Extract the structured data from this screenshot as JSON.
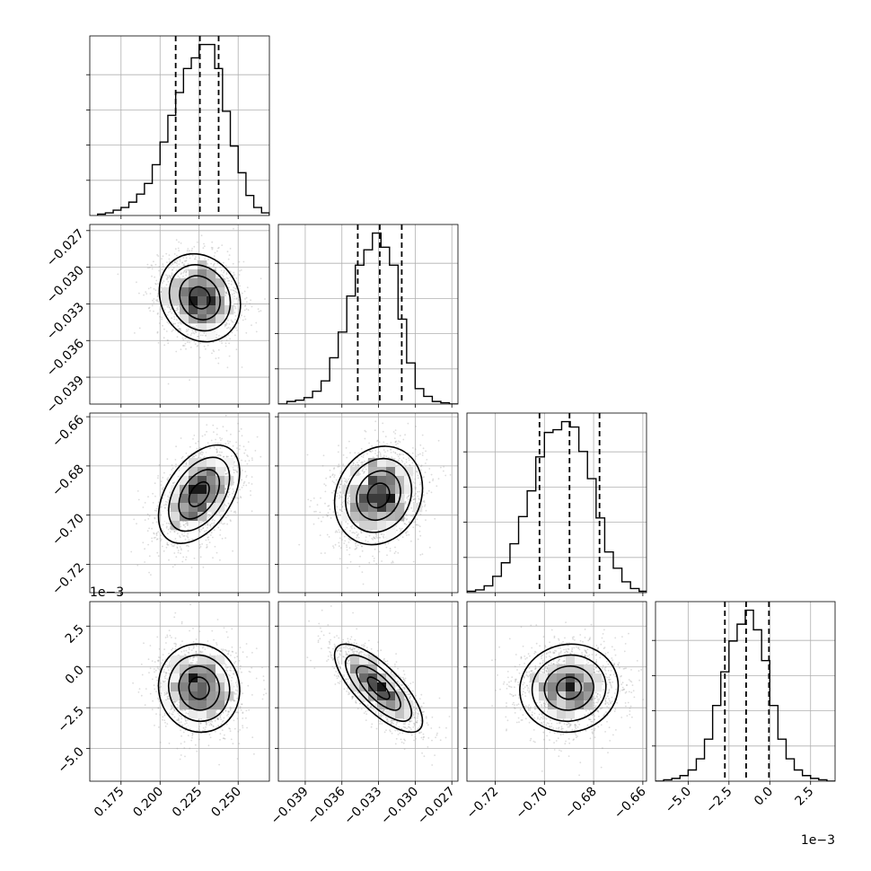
{
  "chart_data": {
    "type": "corner",
    "parameters": 4,
    "grid": true,
    "quantile_lines": "dashed",
    "contour_levels": 3,
    "marginals": [
      {
        "param": 0,
        "range": [
          0.155,
          0.27
        ],
        "ticks": [
          "0.175",
          "0.200",
          "0.225",
          "0.250"
        ],
        "tick_values": [
          0.175,
          0.2,
          0.225,
          0.25
        ],
        "quantiles": [
          0.21,
          0.2255,
          0.2375
        ],
        "bin_edges": [
          0.16,
          0.165,
          0.17,
          0.175,
          0.18,
          0.185,
          0.19,
          0.195,
          0.2,
          0.205,
          0.21,
          0.215,
          0.22,
          0.225,
          0.23,
          0.235,
          0.24,
          0.245,
          0.25,
          0.255,
          0.26,
          0.265,
          0.27
        ],
        "counts": [
          1,
          2,
          4,
          6,
          10,
          16,
          24,
          38,
          55,
          75,
          92,
          110,
          118,
          128,
          128,
          110,
          78,
          52,
          32,
          15,
          6,
          2
        ]
      },
      {
        "param": 1,
        "range": [
          -0.0412,
          -0.0265
        ],
        "ticks": [
          "−0.039",
          "−0.036",
          "−0.033",
          "−0.030",
          "−0.027"
        ],
        "tick_values": [
          -0.039,
          -0.036,
          -0.033,
          -0.03,
          -0.027
        ],
        "quantiles": [
          -0.0347,
          -0.0329,
          -0.0311
        ],
        "bin_edges": [
          -0.0412,
          -0.0405,
          -0.0398,
          -0.0391,
          -0.0384,
          -0.0377,
          -0.037,
          -0.0363,
          -0.0356,
          -0.0349,
          -0.0342,
          -0.0335,
          -0.0328,
          -0.0321,
          -0.0314,
          -0.0307,
          -0.03,
          -0.0293,
          -0.0286,
          -0.0279,
          -0.0272,
          -0.0265
        ],
        "counts": [
          0,
          2,
          3,
          5,
          10,
          18,
          36,
          56,
          84,
          108,
          120,
          133,
          122,
          108,
          66,
          32,
          12,
          6,
          2,
          1,
          0
        ]
      },
      {
        "param": 2,
        "range": [
          -0.7315,
          -0.6585
        ],
        "ticks": [
          "−0.72",
          "−0.70",
          "−0.68",
          "−0.66"
        ],
        "tick_values": [
          -0.72,
          -0.7,
          -0.68,
          -0.66
        ],
        "quantiles": [
          -0.702,
          -0.6898,
          -0.6776
        ],
        "bin_edges": [
          -0.7315,
          -0.728,
          -0.7245,
          -0.721,
          -0.7175,
          -0.714,
          -0.7105,
          -0.707,
          -0.7035,
          -0.7,
          -0.6965,
          -0.693,
          -0.6895,
          -0.686,
          -0.6825,
          -0.679,
          -0.6755,
          -0.672,
          -0.6685,
          -0.665,
          -0.6615,
          -0.658
        ],
        "counts": [
          1,
          2,
          5,
          12,
          22,
          36,
          56,
          75,
          100,
          118,
          120,
          126,
          122,
          104,
          84,
          55,
          30,
          18,
          8,
          3,
          1
        ]
      },
      {
        "param": 3,
        "range": [
          -7.0,
          4.0
        ],
        "ticks": [
          "−5.0",
          "−2.5",
          "0.0",
          "2.5"
        ],
        "tick_values": [
          -5.0,
          -2.5,
          0.0,
          2.5
        ],
        "offset": "1e−3",
        "quantiles": [
          -2.75,
          -1.45,
          -0.05
        ],
        "bin_edges": [
          -7.0,
          -6.5,
          -6.0,
          -5.5,
          -5.0,
          -4.5,
          -4.0,
          -3.5,
          -3.0,
          -2.5,
          -2.0,
          -1.5,
          -1.0,
          -0.5,
          0.0,
          0.5,
          1.0,
          1.5,
          2.0,
          2.5,
          3.0,
          3.5,
          4.0
        ],
        "counts": [
          0,
          1,
          2,
          4,
          8,
          16,
          30,
          54,
          78,
          100,
          112,
          122,
          108,
          86,
          54,
          30,
          16,
          8,
          4,
          2,
          1,
          0
        ]
      }
    ],
    "pairs": [
      {
        "x": 0,
        "y": 1,
        "mean": [
          0.2255,
          -0.0325
        ],
        "sd": [
          0.013,
          0.0018
        ],
        "corr": -0.15
      },
      {
        "x": 0,
        "y": 2,
        "mean": [
          0.225,
          -0.6915
        ],
        "sd": [
          0.013,
          0.01
        ],
        "corr": 0.45
      },
      {
        "x": 1,
        "y": 2,
        "mean": [
          -0.033,
          -0.692
        ],
        "sd": [
          0.0018,
          0.01
        ],
        "corr": 0.15
      },
      {
        "x": 0,
        "y": 3,
        "mean": [
          0.225,
          -1.3
        ],
        "sd": [
          0.013,
          1.35
        ],
        "corr": -0.05
      },
      {
        "x": 1,
        "y": 3,
        "mean": [
          -0.033,
          -1.3
        ],
        "sd": [
          0.0018,
          1.35
        ],
        "corr": -0.75
      },
      {
        "x": 2,
        "y": 3,
        "mean": [
          -0.69,
          -1.3
        ],
        "sd": [
          0.01,
          1.35
        ],
        "corr": 0.05
      }
    ]
  }
}
